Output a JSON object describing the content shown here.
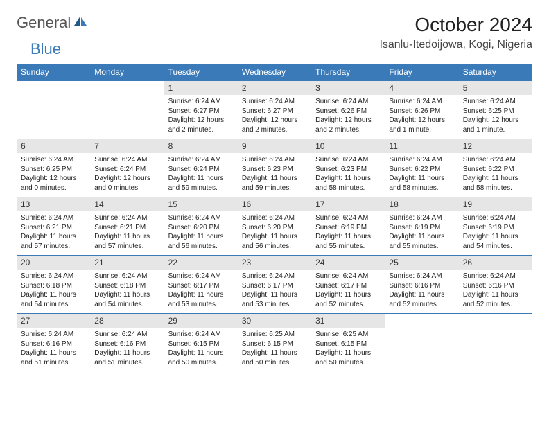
{
  "logo": {
    "general": "General",
    "blue": "Blue"
  },
  "header": {
    "title": "October 2024",
    "location": "Isanlu-Itedoijowa, Kogi, Nigeria"
  },
  "colors": {
    "header_bg": "#3a7ab8",
    "header_text": "#ffffff",
    "daynum_bg": "#e6e6e6",
    "text": "#222222",
    "logo_gray": "#555555",
    "logo_blue": "#3a7ab8"
  },
  "days_of_week": [
    "Sunday",
    "Monday",
    "Tuesday",
    "Wednesday",
    "Thursday",
    "Friday",
    "Saturday"
  ],
  "weeks": [
    [
      null,
      null,
      {
        "num": "1",
        "sunrise": "Sunrise: 6:24 AM",
        "sunset": "Sunset: 6:27 PM",
        "daylight": "Daylight: 12 hours and 2 minutes."
      },
      {
        "num": "2",
        "sunrise": "Sunrise: 6:24 AM",
        "sunset": "Sunset: 6:27 PM",
        "daylight": "Daylight: 12 hours and 2 minutes."
      },
      {
        "num": "3",
        "sunrise": "Sunrise: 6:24 AM",
        "sunset": "Sunset: 6:26 PM",
        "daylight": "Daylight: 12 hours and 2 minutes."
      },
      {
        "num": "4",
        "sunrise": "Sunrise: 6:24 AM",
        "sunset": "Sunset: 6:26 PM",
        "daylight": "Daylight: 12 hours and 1 minute."
      },
      {
        "num": "5",
        "sunrise": "Sunrise: 6:24 AM",
        "sunset": "Sunset: 6:25 PM",
        "daylight": "Daylight: 12 hours and 1 minute."
      }
    ],
    [
      {
        "num": "6",
        "sunrise": "Sunrise: 6:24 AM",
        "sunset": "Sunset: 6:25 PM",
        "daylight": "Daylight: 12 hours and 0 minutes."
      },
      {
        "num": "7",
        "sunrise": "Sunrise: 6:24 AM",
        "sunset": "Sunset: 6:24 PM",
        "daylight": "Daylight: 12 hours and 0 minutes."
      },
      {
        "num": "8",
        "sunrise": "Sunrise: 6:24 AM",
        "sunset": "Sunset: 6:24 PM",
        "daylight": "Daylight: 11 hours and 59 minutes."
      },
      {
        "num": "9",
        "sunrise": "Sunrise: 6:24 AM",
        "sunset": "Sunset: 6:23 PM",
        "daylight": "Daylight: 11 hours and 59 minutes."
      },
      {
        "num": "10",
        "sunrise": "Sunrise: 6:24 AM",
        "sunset": "Sunset: 6:23 PM",
        "daylight": "Daylight: 11 hours and 58 minutes."
      },
      {
        "num": "11",
        "sunrise": "Sunrise: 6:24 AM",
        "sunset": "Sunset: 6:22 PM",
        "daylight": "Daylight: 11 hours and 58 minutes."
      },
      {
        "num": "12",
        "sunrise": "Sunrise: 6:24 AM",
        "sunset": "Sunset: 6:22 PM",
        "daylight": "Daylight: 11 hours and 58 minutes."
      }
    ],
    [
      {
        "num": "13",
        "sunrise": "Sunrise: 6:24 AM",
        "sunset": "Sunset: 6:21 PM",
        "daylight": "Daylight: 11 hours and 57 minutes."
      },
      {
        "num": "14",
        "sunrise": "Sunrise: 6:24 AM",
        "sunset": "Sunset: 6:21 PM",
        "daylight": "Daylight: 11 hours and 57 minutes."
      },
      {
        "num": "15",
        "sunrise": "Sunrise: 6:24 AM",
        "sunset": "Sunset: 6:20 PM",
        "daylight": "Daylight: 11 hours and 56 minutes."
      },
      {
        "num": "16",
        "sunrise": "Sunrise: 6:24 AM",
        "sunset": "Sunset: 6:20 PM",
        "daylight": "Daylight: 11 hours and 56 minutes."
      },
      {
        "num": "17",
        "sunrise": "Sunrise: 6:24 AM",
        "sunset": "Sunset: 6:19 PM",
        "daylight": "Daylight: 11 hours and 55 minutes."
      },
      {
        "num": "18",
        "sunrise": "Sunrise: 6:24 AM",
        "sunset": "Sunset: 6:19 PM",
        "daylight": "Daylight: 11 hours and 55 minutes."
      },
      {
        "num": "19",
        "sunrise": "Sunrise: 6:24 AM",
        "sunset": "Sunset: 6:19 PM",
        "daylight": "Daylight: 11 hours and 54 minutes."
      }
    ],
    [
      {
        "num": "20",
        "sunrise": "Sunrise: 6:24 AM",
        "sunset": "Sunset: 6:18 PM",
        "daylight": "Daylight: 11 hours and 54 minutes."
      },
      {
        "num": "21",
        "sunrise": "Sunrise: 6:24 AM",
        "sunset": "Sunset: 6:18 PM",
        "daylight": "Daylight: 11 hours and 54 minutes."
      },
      {
        "num": "22",
        "sunrise": "Sunrise: 6:24 AM",
        "sunset": "Sunset: 6:17 PM",
        "daylight": "Daylight: 11 hours and 53 minutes."
      },
      {
        "num": "23",
        "sunrise": "Sunrise: 6:24 AM",
        "sunset": "Sunset: 6:17 PM",
        "daylight": "Daylight: 11 hours and 53 minutes."
      },
      {
        "num": "24",
        "sunrise": "Sunrise: 6:24 AM",
        "sunset": "Sunset: 6:17 PM",
        "daylight": "Daylight: 11 hours and 52 minutes."
      },
      {
        "num": "25",
        "sunrise": "Sunrise: 6:24 AM",
        "sunset": "Sunset: 6:16 PM",
        "daylight": "Daylight: 11 hours and 52 minutes."
      },
      {
        "num": "26",
        "sunrise": "Sunrise: 6:24 AM",
        "sunset": "Sunset: 6:16 PM",
        "daylight": "Daylight: 11 hours and 52 minutes."
      }
    ],
    [
      {
        "num": "27",
        "sunrise": "Sunrise: 6:24 AM",
        "sunset": "Sunset: 6:16 PM",
        "daylight": "Daylight: 11 hours and 51 minutes."
      },
      {
        "num": "28",
        "sunrise": "Sunrise: 6:24 AM",
        "sunset": "Sunset: 6:16 PM",
        "daylight": "Daylight: 11 hours and 51 minutes."
      },
      {
        "num": "29",
        "sunrise": "Sunrise: 6:24 AM",
        "sunset": "Sunset: 6:15 PM",
        "daylight": "Daylight: 11 hours and 50 minutes."
      },
      {
        "num": "30",
        "sunrise": "Sunrise: 6:25 AM",
        "sunset": "Sunset: 6:15 PM",
        "daylight": "Daylight: 11 hours and 50 minutes."
      },
      {
        "num": "31",
        "sunrise": "Sunrise: 6:25 AM",
        "sunset": "Sunset: 6:15 PM",
        "daylight": "Daylight: 11 hours and 50 minutes."
      },
      null,
      null
    ]
  ]
}
